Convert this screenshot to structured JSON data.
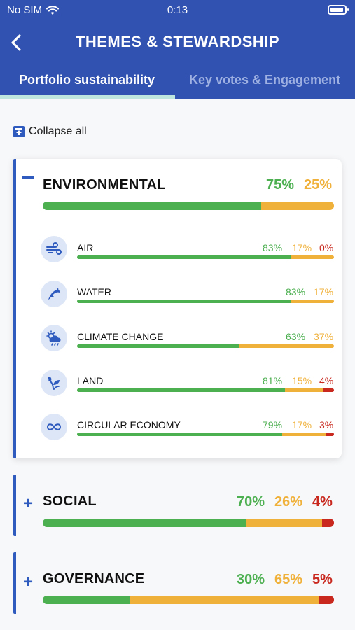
{
  "status_bar": {
    "carrier": "No SIM",
    "time": "0:13"
  },
  "header": {
    "title": "THEMES & STEWARDSHIP",
    "tabs": [
      {
        "label": "Portfolio sustainability",
        "active": true
      },
      {
        "label": "Key votes & Engagement",
        "active": false
      }
    ]
  },
  "collapse_all_label": "Collapse all",
  "colors": {
    "header": "#3152b0",
    "green": "#4caf50",
    "amber": "#f0b13a",
    "red": "#c8281e",
    "accent": "#2f5bbf"
  },
  "themes": [
    {
      "title": "ENVIRONMENTAL",
      "expanded": true,
      "green": 75,
      "amber": 25,
      "red": null,
      "green_label": "75%",
      "amber_label": "25%",
      "items": [
        {
          "label": "AIR",
          "icon": "wind-icon",
          "green": 83,
          "amber": 17,
          "red": 0,
          "green_label": "83%",
          "amber_label": "17%",
          "red_label": "0%"
        },
        {
          "label": "WATER",
          "icon": "dolphin-icon",
          "green": 83,
          "amber": 17,
          "red": null,
          "green_label": "83%",
          "amber_label": "17%"
        },
        {
          "label": "CLIMATE CHANGE",
          "icon": "cloud-sun-icon",
          "green": 63,
          "amber": 37,
          "red": null,
          "green_label": "63%",
          "amber_label": "37%"
        },
        {
          "label": "LAND",
          "icon": "leaf-icon",
          "green": 81,
          "amber": 15,
          "red": 4,
          "green_label": "81%",
          "amber_label": "15%",
          "red_label": "4%"
        },
        {
          "label": "CIRCULAR ECONOMY",
          "icon": "infinity-icon",
          "green": 79,
          "amber": 17,
          "red": 3,
          "green_label": "79%",
          "amber_label": "17%",
          "red_label": "3%"
        }
      ]
    },
    {
      "title": "SOCIAL",
      "expanded": false,
      "green": 70,
      "amber": 26,
      "red": 4,
      "green_label": "70%",
      "amber_label": "26%",
      "red_label": "4%"
    },
    {
      "title": "GOVERNANCE",
      "expanded": false,
      "green": 30,
      "amber": 65,
      "red": 5,
      "green_label": "30%",
      "amber_label": "65%",
      "red_label": "5%"
    }
  ]
}
